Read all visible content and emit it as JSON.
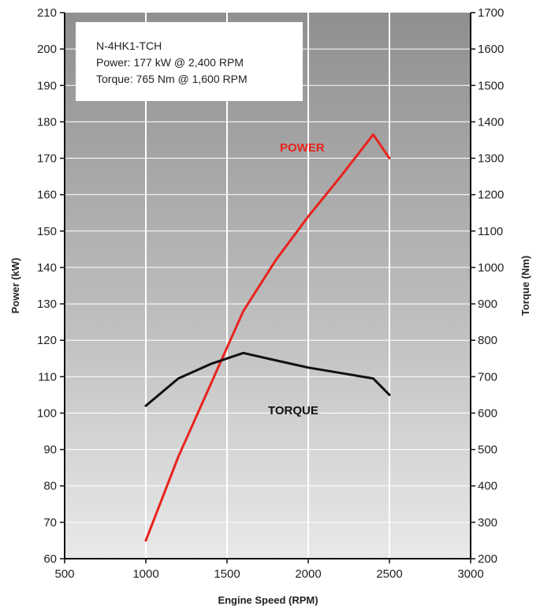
{
  "info_box": {
    "model": "N-4HK1-TCH",
    "power_line": "Power: 177 kW @ 2,400 RPM",
    "torque_line": "Torque: 765 Nm @ 1,600 RPM"
  },
  "chart_data": {
    "type": "line",
    "title": "",
    "xlabel": "Engine Speed (RPM)",
    "ylabel": "Power (kW)",
    "y2label": "Torque (Nm)",
    "xlim": [
      500,
      3000
    ],
    "ylim": [
      60,
      210
    ],
    "y2lim": [
      200,
      1700
    ],
    "xticks": [
      500,
      1000,
      1500,
      2000,
      2500,
      3000
    ],
    "yticks": [
      60,
      70,
      80,
      90,
      100,
      110,
      120,
      130,
      140,
      150,
      160,
      170,
      180,
      190,
      200,
      210
    ],
    "y2ticks": [
      200,
      300,
      400,
      500,
      600,
      700,
      800,
      900,
      1000,
      1100,
      1200,
      1300,
      1400,
      1500,
      1600,
      1700
    ],
    "grid": true,
    "series": [
      {
        "name": "POWER",
        "axis": "left",
        "color": "#e8231e",
        "x": [
          1000,
          1200,
          1400,
          1600,
          1800,
          2000,
          2200,
          2400,
          2500
        ],
        "y": [
          65,
          88,
          108,
          128,
          142,
          154,
          165,
          176.5,
          170
        ]
      },
      {
        "name": "TORQUE",
        "axis": "right",
        "color": "#111111",
        "x": [
          1000,
          1200,
          1400,
          1600,
          1800,
          2000,
          2200,
          2400,
          2500
        ],
        "y": [
          620,
          695,
          735,
          765,
          745,
          725,
          710,
          695,
          650
        ]
      }
    ]
  }
}
